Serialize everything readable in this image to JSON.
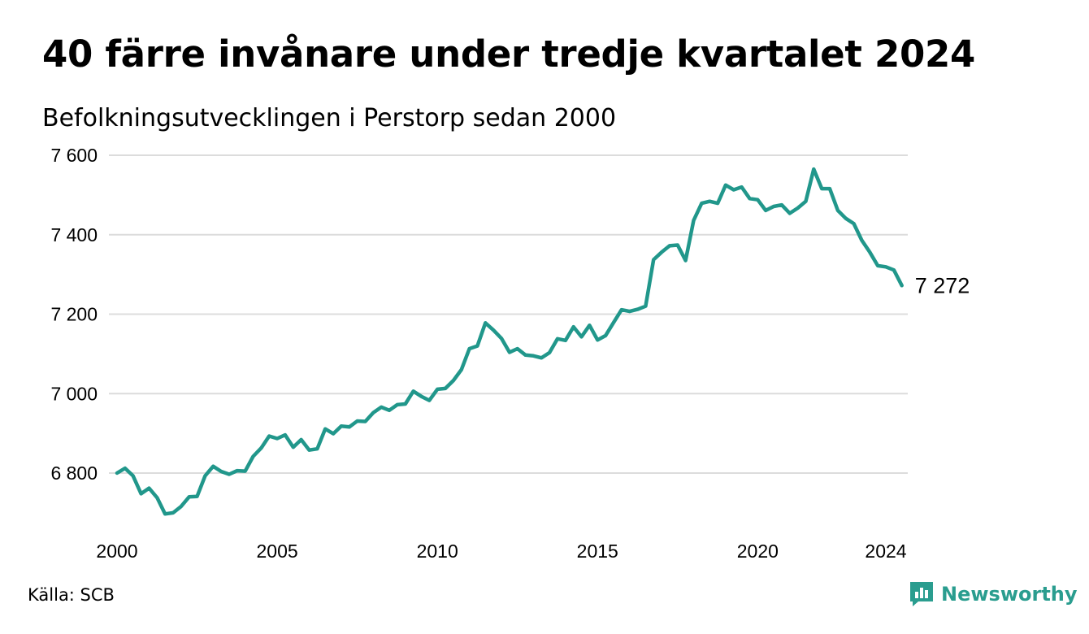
{
  "header": {
    "title": "40 färre invånare under tredje kvartalet 2024",
    "subtitle": "Befolkningsutvecklingen i Perstorp sedan 2000"
  },
  "footer": {
    "source": "Källa: SCB",
    "brand": "Newsworthy",
    "brand_icon": "newsworthy-logo-icon"
  },
  "colors": {
    "line": "#21978b",
    "grid": "#dcdcdc",
    "brand": "#2a9d8f"
  },
  "chart_data": {
    "type": "line",
    "title": "40 färre invånare under tredje kvartalet 2024",
    "subtitle": "Befolkningsutvecklingen i Perstorp sedan 2000",
    "xlabel": "",
    "ylabel": "",
    "ylim": [
      6680,
      7600
    ],
    "xlim": [
      2000.0,
      2024.75
    ],
    "y_ticks": [
      6800,
      7000,
      7200,
      7400,
      7600
    ],
    "y_tick_labels": [
      "6 800",
      "7 000",
      "7 200",
      "7 400",
      "7 600"
    ],
    "x_ticks": [
      2000,
      2005,
      2010,
      2015,
      2020,
      2024
    ],
    "x_tick_labels": [
      "2000",
      "2005",
      "2010",
      "2015",
      "2020",
      "2024"
    ],
    "grid": "horizontal",
    "last_value_label": "7 272",
    "series": [
      {
        "x_start": 2000.0,
        "x_step": 0.25,
        "values": [
          6800,
          6812,
          6793,
          6748,
          6762,
          6738,
          6697,
          6700,
          6716,
          6740,
          6741,
          6793,
          6817,
          6804,
          6797,
          6806,
          6805,
          6842,
          6863,
          6893,
          6887,
          6896,
          6865,
          6884,
          6858,
          6861,
          6911,
          6899,
          6918,
          6916,
          6931,
          6930,
          6952,
          6966,
          6958,
          6972,
          6974,
          7006,
          6993,
          6983,
          7011,
          7013,
          7033,
          7060,
          7113,
          7120,
          7178,
          7160,
          7139,
          7104,
          7113,
          7097,
          7095,
          7090,
          7103,
          7138,
          7134,
          7168,
          7143,
          7172,
          7135,
          7146,
          7179,
          7211,
          7207,
          7212,
          7220,
          7337,
          7356,
          7372,
          7374,
          7335,
          7436,
          7479,
          7484,
          7479,
          7525,
          7513,
          7520,
          7491,
          7488,
          7461,
          7471,
          7475,
          7454,
          7467,
          7484,
          7565,
          7516,
          7516,
          7461,
          7441,
          7428,
          7386,
          7356,
          7322,
          7319,
          7311,
          7272
        ]
      }
    ]
  }
}
